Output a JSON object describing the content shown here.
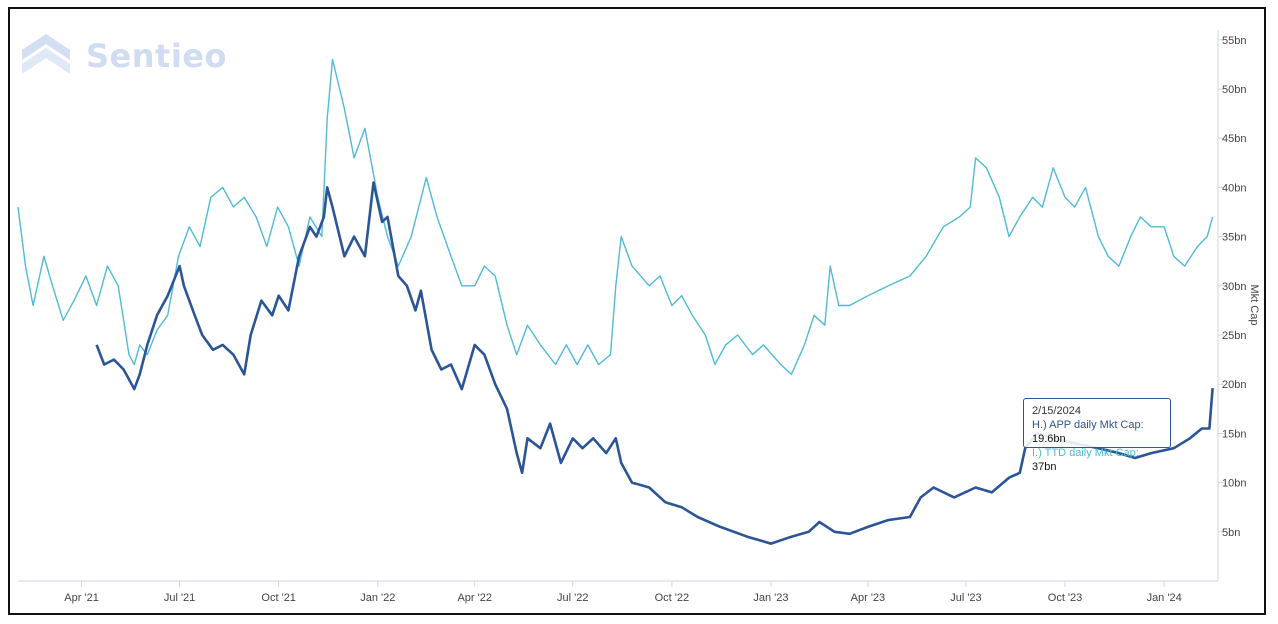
{
  "logo": {
    "text": "Sentieo",
    "icon": "stacked-chevron-logo-icon"
  },
  "chart_data": {
    "type": "line",
    "title": "",
    "xlabel": "",
    "ylabel": "Mkt Cap",
    "ylim": [
      0,
      56
    ],
    "y_ticks": [
      5,
      10,
      15,
      20,
      25,
      30,
      35,
      40,
      45,
      50,
      55
    ],
    "y_tick_labels": [
      "5bn",
      "10bn",
      "15bn",
      "20bn",
      "25bn",
      "30bn",
      "35bn",
      "40bn",
      "45bn",
      "50bn",
      "55bn"
    ],
    "x_range": [
      "2021-02-01",
      "2024-02-20"
    ],
    "x_ticks": [
      "2021-04-01",
      "2021-07-01",
      "2021-10-01",
      "2022-01-01",
      "2022-04-01",
      "2022-07-01",
      "2022-10-01",
      "2023-01-01",
      "2023-04-01",
      "2023-07-01",
      "2023-10-01",
      "2024-01-01"
    ],
    "x_tick_labels": [
      "Apr '21",
      "Jul '21",
      "Oct '21",
      "Jan '22",
      "Apr '22",
      "Jul '22",
      "Oct '22",
      "Jan '23",
      "Apr '23",
      "Jul '23",
      "Oct '23",
      "Jan '24"
    ],
    "grid": false,
    "axis_side": "right",
    "colors": {
      "APP": "#2b5597",
      "TTD": "#4fbbd6"
    },
    "series": [
      {
        "name": "H.) APP daily Mkt Cap",
        "points": [
          [
            "2021-04-15",
            24
          ],
          [
            "2021-04-22",
            22
          ],
          [
            "2021-05-01",
            22.5
          ],
          [
            "2021-05-10",
            21.5
          ],
          [
            "2021-05-20",
            19.5
          ],
          [
            "2021-05-25",
            21
          ],
          [
            "2021-06-01",
            24
          ],
          [
            "2021-06-10",
            27
          ],
          [
            "2021-06-20",
            29
          ],
          [
            "2021-07-01",
            32
          ],
          [
            "2021-07-05",
            30
          ],
          [
            "2021-07-15",
            27
          ],
          [
            "2021-07-22",
            25
          ],
          [
            "2021-08-01",
            23.5
          ],
          [
            "2021-08-10",
            24
          ],
          [
            "2021-08-20",
            23
          ],
          [
            "2021-08-30",
            21
          ],
          [
            "2021-09-05",
            25
          ],
          [
            "2021-09-15",
            28.5
          ],
          [
            "2021-09-25",
            27
          ],
          [
            "2021-10-01",
            29
          ],
          [
            "2021-10-10",
            27.5
          ],
          [
            "2021-10-20",
            33
          ],
          [
            "2021-10-30",
            36
          ],
          [
            "2021-11-05",
            35
          ],
          [
            "2021-11-12",
            37
          ],
          [
            "2021-11-15",
            40
          ],
          [
            "2021-11-20",
            38
          ],
          [
            "2021-12-01",
            33
          ],
          [
            "2021-12-10",
            35
          ],
          [
            "2021-12-20",
            33
          ],
          [
            "2021-12-28",
            40.5
          ],
          [
            "2022-01-05",
            36.5
          ],
          [
            "2022-01-10",
            37
          ],
          [
            "2022-01-20",
            31
          ],
          [
            "2022-01-28",
            30
          ],
          [
            "2022-02-05",
            27.5
          ],
          [
            "2022-02-10",
            29.5
          ],
          [
            "2022-02-20",
            23.5
          ],
          [
            "2022-03-01",
            21.5
          ],
          [
            "2022-03-10",
            22
          ],
          [
            "2022-03-20",
            19.5
          ],
          [
            "2022-04-01",
            24
          ],
          [
            "2022-04-10",
            23
          ],
          [
            "2022-04-20",
            20
          ],
          [
            "2022-05-01",
            17.5
          ],
          [
            "2022-05-10",
            13
          ],
          [
            "2022-05-15",
            11
          ],
          [
            "2022-05-20",
            14.5
          ],
          [
            "2022-06-01",
            13.5
          ],
          [
            "2022-06-10",
            16
          ],
          [
            "2022-06-20",
            12
          ],
          [
            "2022-07-01",
            14.5
          ],
          [
            "2022-07-10",
            13.5
          ],
          [
            "2022-07-20",
            14.5
          ],
          [
            "2022-08-01",
            13
          ],
          [
            "2022-08-10",
            14.5
          ],
          [
            "2022-08-15",
            12
          ],
          [
            "2022-08-25",
            10
          ],
          [
            "2022-09-10",
            9.5
          ],
          [
            "2022-09-25",
            8
          ],
          [
            "2022-10-10",
            7.5
          ],
          [
            "2022-10-25",
            6.5
          ],
          [
            "2022-11-15",
            5.5
          ],
          [
            "2022-12-10",
            4.5
          ],
          [
            "2023-01-01",
            3.8
          ],
          [
            "2023-01-20",
            4.5
          ],
          [
            "2023-02-05",
            5
          ],
          [
            "2023-02-15",
            6
          ],
          [
            "2023-03-01",
            5
          ],
          [
            "2023-03-15",
            4.8
          ],
          [
            "2023-04-01",
            5.5
          ],
          [
            "2023-04-20",
            6.2
          ],
          [
            "2023-05-10",
            6.5
          ],
          [
            "2023-05-20",
            8.5
          ],
          [
            "2023-06-01",
            9.5
          ],
          [
            "2023-06-20",
            8.5
          ],
          [
            "2023-07-10",
            9.5
          ],
          [
            "2023-07-25",
            9
          ],
          [
            "2023-08-10",
            10.5
          ],
          [
            "2023-08-20",
            11
          ],
          [
            "2023-08-25",
            13.5
          ],
          [
            "2023-09-05",
            15
          ],
          [
            "2023-09-20",
            14.5
          ],
          [
            "2023-10-10",
            14
          ],
          [
            "2023-11-01",
            13.5
          ],
          [
            "2023-11-20",
            13
          ],
          [
            "2023-12-05",
            12.5
          ],
          [
            "2023-12-20",
            13
          ],
          [
            "2024-01-10",
            13.5
          ],
          [
            "2024-01-25",
            14.5
          ],
          [
            "2024-02-05",
            15.5
          ],
          [
            "2024-02-12",
            15.5
          ],
          [
            "2024-02-15",
            19.6
          ]
        ]
      },
      {
        "name": "I.) TTD daily Mkt Cap",
        "points": [
          [
            "2021-02-01",
            38
          ],
          [
            "2021-02-08",
            32
          ],
          [
            "2021-02-15",
            28
          ],
          [
            "2021-02-25",
            33
          ],
          [
            "2021-03-05",
            30
          ],
          [
            "2021-03-15",
            26.5
          ],
          [
            "2021-03-25",
            28.5
          ],
          [
            "2021-04-05",
            31
          ],
          [
            "2021-04-15",
            28
          ],
          [
            "2021-04-25",
            32
          ],
          [
            "2021-05-05",
            30
          ],
          [
            "2021-05-15",
            23
          ],
          [
            "2021-05-20",
            22
          ],
          [
            "2021-05-25",
            24
          ],
          [
            "2021-06-01",
            23
          ],
          [
            "2021-06-10",
            25.5
          ],
          [
            "2021-06-20",
            27
          ],
          [
            "2021-06-30",
            33
          ],
          [
            "2021-07-10",
            36
          ],
          [
            "2021-07-20",
            34
          ],
          [
            "2021-07-30",
            39
          ],
          [
            "2021-08-10",
            40
          ],
          [
            "2021-08-20",
            38
          ],
          [
            "2021-08-30",
            39
          ],
          [
            "2021-09-10",
            37
          ],
          [
            "2021-09-20",
            34
          ],
          [
            "2021-09-30",
            38
          ],
          [
            "2021-10-10",
            36
          ],
          [
            "2021-10-20",
            32
          ],
          [
            "2021-10-30",
            37
          ],
          [
            "2021-11-10",
            35
          ],
          [
            "2021-11-15",
            47
          ],
          [
            "2021-11-20",
            53
          ],
          [
            "2021-12-01",
            48
          ],
          [
            "2021-12-10",
            43
          ],
          [
            "2021-12-20",
            46
          ],
          [
            "2022-01-01",
            39
          ],
          [
            "2022-01-10",
            35
          ],
          [
            "2022-01-20",
            32
          ],
          [
            "2022-02-01",
            35
          ],
          [
            "2022-02-15",
            41
          ],
          [
            "2022-02-25",
            37
          ],
          [
            "2022-03-10",
            33
          ],
          [
            "2022-03-20",
            30
          ],
          [
            "2022-04-01",
            30
          ],
          [
            "2022-04-10",
            32
          ],
          [
            "2022-04-20",
            31
          ],
          [
            "2022-05-01",
            26
          ],
          [
            "2022-05-10",
            23
          ],
          [
            "2022-05-20",
            26
          ],
          [
            "2022-06-01",
            24
          ],
          [
            "2022-06-15",
            22
          ],
          [
            "2022-06-25",
            24
          ],
          [
            "2022-07-05",
            22
          ],
          [
            "2022-07-15",
            24
          ],
          [
            "2022-07-25",
            22
          ],
          [
            "2022-08-05",
            23
          ],
          [
            "2022-08-10",
            30
          ],
          [
            "2022-08-15",
            35
          ],
          [
            "2022-08-25",
            32
          ],
          [
            "2022-09-10",
            30
          ],
          [
            "2022-09-20",
            31
          ],
          [
            "2022-10-01",
            28
          ],
          [
            "2022-10-10",
            29
          ],
          [
            "2022-10-20",
            27
          ],
          [
            "2022-11-01",
            25
          ],
          [
            "2022-11-10",
            22
          ],
          [
            "2022-11-20",
            24
          ],
          [
            "2022-12-01",
            25
          ],
          [
            "2022-12-15",
            23
          ],
          [
            "2022-12-25",
            24
          ],
          [
            "2023-01-10",
            22
          ],
          [
            "2023-01-20",
            21
          ],
          [
            "2023-02-01",
            24
          ],
          [
            "2023-02-10",
            27
          ],
          [
            "2023-02-20",
            26
          ],
          [
            "2023-02-25",
            32
          ],
          [
            "2023-03-05",
            28
          ],
          [
            "2023-03-15",
            28
          ],
          [
            "2023-04-01",
            29
          ],
          [
            "2023-04-20",
            30
          ],
          [
            "2023-05-10",
            31
          ],
          [
            "2023-05-25",
            33
          ],
          [
            "2023-06-10",
            36
          ],
          [
            "2023-06-25",
            37
          ],
          [
            "2023-07-05",
            38
          ],
          [
            "2023-07-10",
            43
          ],
          [
            "2023-07-20",
            42
          ],
          [
            "2023-08-01",
            39
          ],
          [
            "2023-08-10",
            35
          ],
          [
            "2023-08-20",
            37
          ],
          [
            "2023-09-01",
            39
          ],
          [
            "2023-09-10",
            38
          ],
          [
            "2023-09-20",
            42
          ],
          [
            "2023-10-01",
            39
          ],
          [
            "2023-10-10",
            38
          ],
          [
            "2023-10-20",
            40
          ],
          [
            "2023-11-01",
            35
          ],
          [
            "2023-11-10",
            33
          ],
          [
            "2023-11-20",
            32
          ],
          [
            "2023-12-01",
            35
          ],
          [
            "2023-12-10",
            37
          ],
          [
            "2023-12-20",
            36
          ],
          [
            "2024-01-01",
            36
          ],
          [
            "2024-01-10",
            33
          ],
          [
            "2024-01-20",
            32
          ],
          [
            "2024-02-01",
            34
          ],
          [
            "2024-02-10",
            35
          ],
          [
            "2024-02-15",
            37
          ]
        ]
      }
    ],
    "tooltip": {
      "date": "2/15/2024",
      "rows": [
        {
          "label": "H.) APP daily Mkt Cap: ",
          "value": "19.6bn"
        },
        {
          "label": "I.) TTD daily Mkt Cap: ",
          "value": "37bn"
        }
      ]
    }
  }
}
